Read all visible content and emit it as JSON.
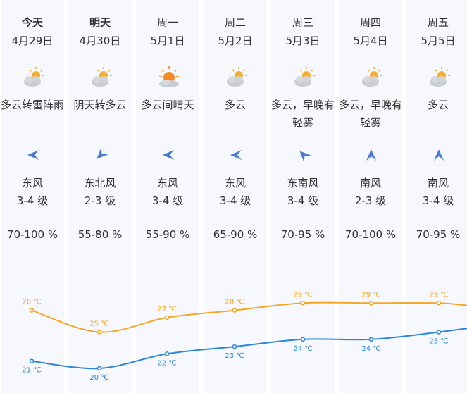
{
  "days": [
    {
      "name": "今天",
      "date": "4月29日",
      "weather": "多云转雷阵雨",
      "wind_direction": "东风",
      "wind_level": "3-4 级",
      "humidity": "70-100 %",
      "high": "28 ℃",
      "low": "21 ℃",
      "icon": "partly-cloudy-icon",
      "wind_arrow": "east-wind-arrow-icon"
    },
    {
      "name": "明天",
      "date": "4月30日",
      "weather": "阴天转多云",
      "wind_direction": "东北风",
      "wind_level": "2-3 级",
      "humidity": "55-80 %",
      "high": "25 ℃",
      "low": "20 ℃",
      "icon": "partly-cloudy-icon",
      "wind_arrow": "northeast-wind-arrow-icon"
    },
    {
      "name": "周一",
      "date": "5月1日",
      "weather": "多云间晴天",
      "wind_direction": "东风",
      "wind_level": "3-4 级",
      "humidity": "55-90 %",
      "high": "27 ℃",
      "low": "22 ℃",
      "icon": "sun-cloud-icon",
      "wind_arrow": "east-wind-arrow-icon"
    },
    {
      "name": "周二",
      "date": "5月2日",
      "weather": "多云",
      "wind_direction": "东风",
      "wind_level": "3-4 级",
      "humidity": "65-90 %",
      "high": "28 ℃",
      "low": "23 ℃",
      "icon": "partly-cloudy-icon",
      "wind_arrow": "east-wind-arrow-icon"
    },
    {
      "name": "周三",
      "date": "5月3日",
      "weather": "多云，早晚有轻雾",
      "wind_direction": "东南风",
      "wind_level": "3-4 级",
      "humidity": "70-95 %",
      "high": "29 ℃",
      "low": "24 ℃",
      "icon": "partly-cloudy-icon",
      "wind_arrow": "southeast-wind-arrow-icon"
    },
    {
      "name": "周四",
      "date": "5月4日",
      "weather": "多云，早晚有轻雾",
      "wind_direction": "南风",
      "wind_level": "2-3 级",
      "humidity": "70-100 %",
      "high": "29 ℃",
      "low": "24 ℃",
      "icon": "partly-cloudy-icon",
      "wind_arrow": "south-wind-arrow-icon"
    },
    {
      "name": "周五",
      "date": "5月5日",
      "weather": "多云",
      "wind_direction": "南风",
      "wind_level": "3-4 级",
      "humidity": "70-95 %",
      "high": "29 ℃",
      "low": "25 ℃",
      "icon": "partly-cloudy-icon",
      "wind_arrow": "south-wind-arrow-icon"
    }
  ],
  "chart_data": {
    "type": "line",
    "x": [
      "今天",
      "明天",
      "周一",
      "周二",
      "周三",
      "周四",
      "周五"
    ],
    "series": [
      {
        "values": [
          28,
          25,
          27,
          28,
          29,
          29,
          29
        ],
        "color": "#f5a623"
      },
      {
        "values": [
          21,
          20,
          22,
          23,
          24,
          24,
          25
        ],
        "color": "#2a86d9"
      }
    ]
  },
  "colors": {
    "high": "#f5a623",
    "low": "#2a86d9",
    "column": "#f6f8fd",
    "wind_arrow": "#4a7bd0"
  }
}
